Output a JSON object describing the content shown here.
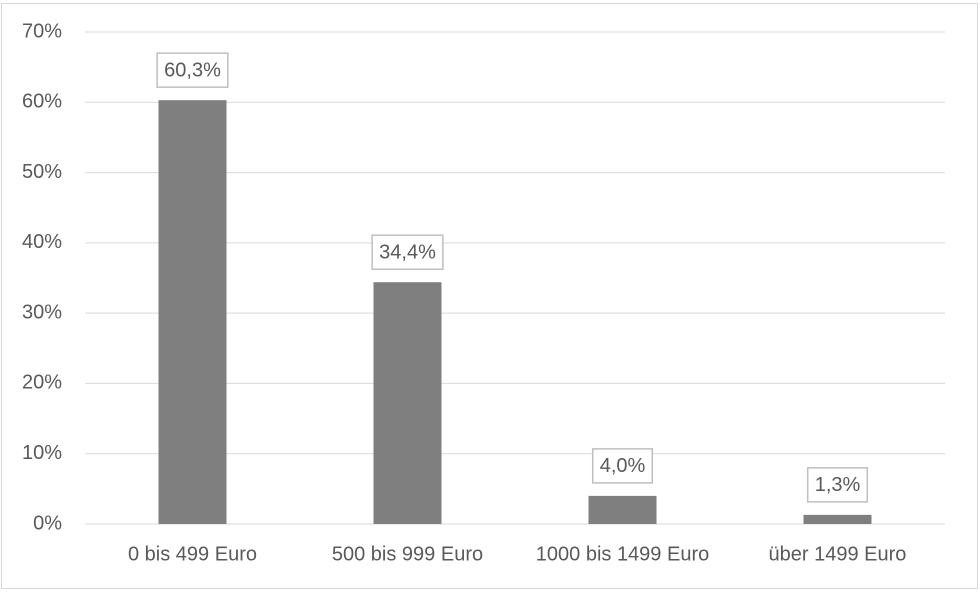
{
  "chart_data": {
    "type": "bar",
    "categories": [
      "0 bis 499 Euro",
      "500 bis 999 Euro",
      "1000 bis 1499 Euro",
      "über 1499 Euro"
    ],
    "values": [
      60.3,
      34.4,
      4.0,
      1.3
    ],
    "value_labels": [
      "60,3%",
      "34,4%",
      "4,0%",
      "1,3%"
    ],
    "color": "#7f7f7f",
    "ylim": [
      0,
      70
    ],
    "yticks": [
      {
        "value": 0,
        "label": "0%"
      },
      {
        "value": 10,
        "label": "10%"
      },
      {
        "value": 20,
        "label": "20%"
      },
      {
        "value": 30,
        "label": "30%"
      },
      {
        "value": 40,
        "label": "40%"
      },
      {
        "value": 50,
        "label": "50%"
      },
      {
        "value": 60,
        "label": "60%"
      },
      {
        "value": 70,
        "label": "70%"
      }
    ],
    "grid": true
  }
}
